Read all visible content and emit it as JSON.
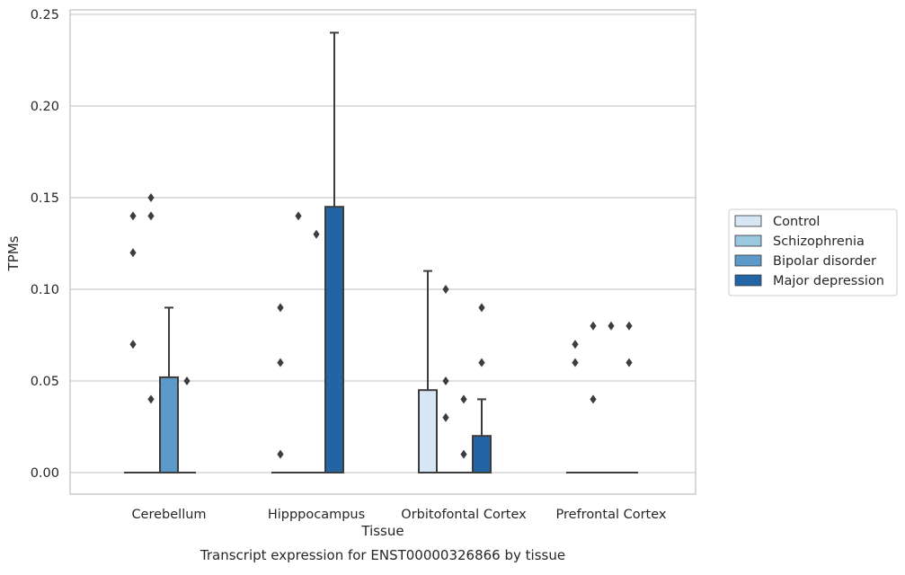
{
  "chart_data": {
    "type": "box",
    "title": "",
    "caption": "Transcript expression for ENST00000326866 by tissue",
    "xlabel": "Tissue",
    "ylabel": "TPMs",
    "ylim": [
      -0.0115,
      0.2525
    ],
    "yticks": [
      0.0,
      0.05,
      0.1,
      0.15,
      0.2,
      0.25
    ],
    "ytick_labels": [
      "0.00",
      "0.05",
      "0.10",
      "0.15",
      "0.20",
      "0.25"
    ],
    "grid": "horizontal",
    "legend_position": "right",
    "categories": [
      "Cerebellum",
      "Hipppocampus",
      "Orbitofontal Cortex",
      "Prefrontal Cortex"
    ],
    "series": [
      {
        "name": "Control",
        "color": "#d6e6f4",
        "boxes": [
          {
            "q1": 0,
            "median": 0,
            "q3": 0,
            "whisker_low": 0,
            "whisker_high": 0,
            "outliers": [
              0.07,
              0.12,
              0.14
            ]
          },
          {
            "q1": 0,
            "median": 0,
            "q3": 0,
            "whisker_low": 0,
            "whisker_high": 0,
            "outliers": [
              0.01,
              0.06,
              0.09
            ]
          },
          {
            "q1": 0,
            "median": 0,
            "q3": 0.045,
            "whisker_low": 0,
            "whisker_high": 0.11,
            "outliers": []
          },
          {
            "q1": 0,
            "median": 0,
            "q3": 0,
            "whisker_low": 0,
            "whisker_high": 0,
            "outliers": [
              0.06,
              0.07
            ]
          }
        ]
      },
      {
        "name": "Schizophrenia",
        "color": "#9ac8e0",
        "boxes": [
          {
            "q1": 0,
            "median": 0,
            "q3": 0,
            "whisker_low": 0,
            "whisker_high": 0,
            "outliers": [
              0.04,
              0.14,
              0.15
            ]
          },
          {
            "q1": 0,
            "median": 0,
            "q3": 0,
            "whisker_low": 0,
            "whisker_high": 0,
            "outliers": [
              0.14
            ]
          },
          {
            "q1": 0,
            "median": 0,
            "q3": 0,
            "whisker_low": 0,
            "whisker_high": 0,
            "outliers": [
              0.03,
              0.05,
              0.1
            ]
          },
          {
            "q1": 0,
            "median": 0,
            "q3": 0,
            "whisker_low": 0,
            "whisker_high": 0,
            "outliers": [
              0.04,
              0.08
            ]
          }
        ]
      },
      {
        "name": "Bipolar disorder",
        "color": "#5b9ac9",
        "boxes": [
          {
            "q1": 0,
            "median": 0,
            "q3": 0.052,
            "whisker_low": 0,
            "whisker_high": 0.09,
            "outliers": []
          },
          {
            "q1": 0,
            "median": 0,
            "q3": 0,
            "whisker_low": 0,
            "whisker_high": 0,
            "outliers": [
              0.13
            ]
          },
          {
            "q1": 0,
            "median": 0,
            "q3": 0,
            "whisker_low": 0,
            "whisker_high": 0,
            "outliers": [
              0.01,
              0.04
            ]
          },
          {
            "q1": 0,
            "median": 0,
            "q3": 0,
            "whisker_low": 0,
            "whisker_high": 0,
            "outliers": [
              0.08
            ]
          }
        ]
      },
      {
        "name": "Major depression",
        "color": "#2264a4",
        "boxes": [
          {
            "q1": 0,
            "median": 0,
            "q3": 0,
            "whisker_low": 0,
            "whisker_high": 0,
            "outliers": [
              0.05
            ]
          },
          {
            "q1": 0,
            "median": 0,
            "q3": 0.145,
            "whisker_low": 0,
            "whisker_high": 0.24,
            "outliers": []
          },
          {
            "q1": 0,
            "median": 0,
            "q3": 0.02,
            "whisker_low": 0,
            "whisker_high": 0.04,
            "outliers": [
              0.06,
              0.09
            ]
          },
          {
            "q1": 0,
            "median": 0,
            "q3": 0,
            "whisker_low": 0,
            "whisker_high": 0,
            "outliers": [
              0.06,
              0.08
            ]
          }
        ]
      }
    ]
  }
}
